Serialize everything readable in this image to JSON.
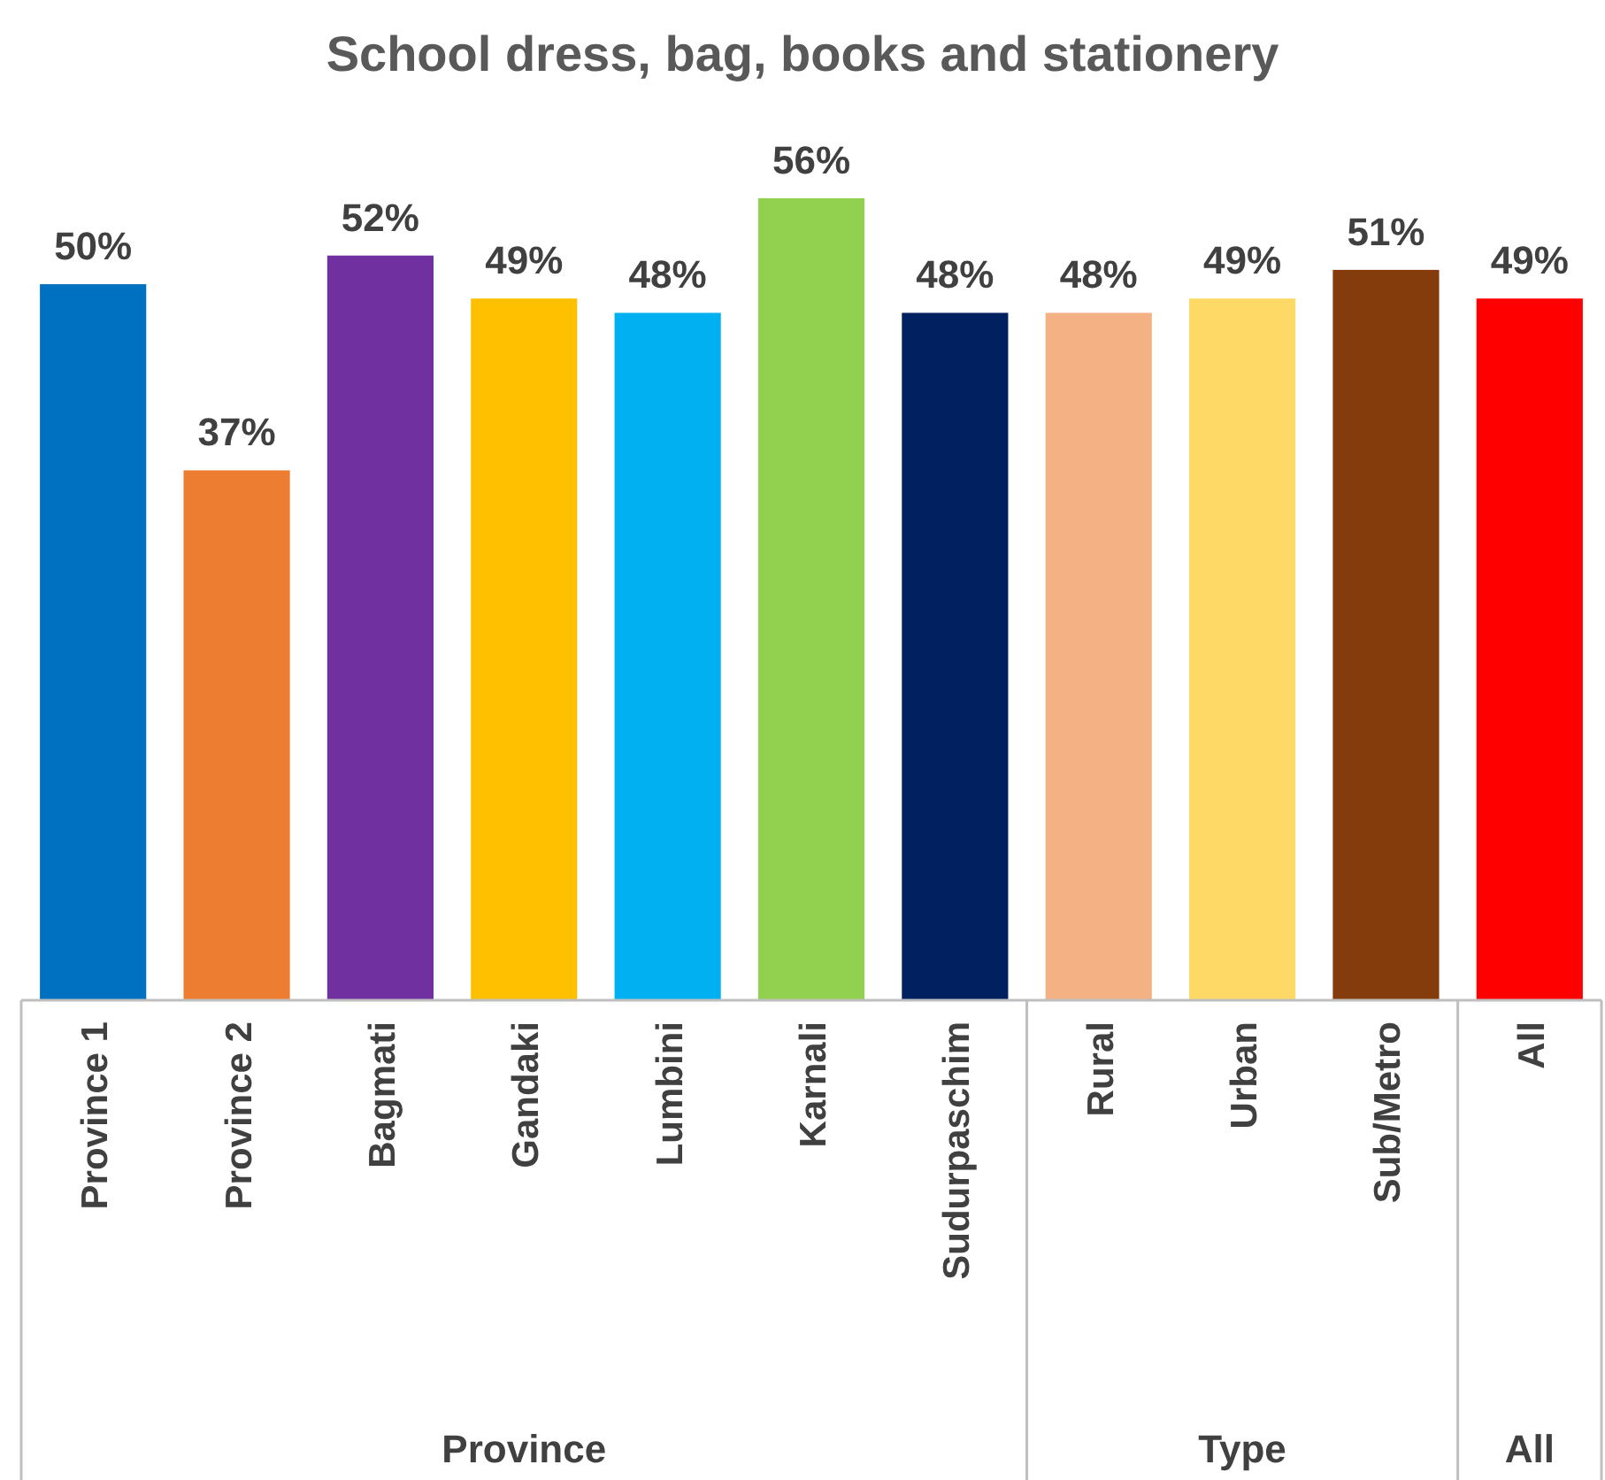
{
  "chart_data": {
    "type": "bar",
    "title": "School dress, bag, books and stationery",
    "categories": [
      "Province 1",
      "Province 2",
      "Bagmati",
      "Gandaki",
      "Lumbini",
      "Karnali",
      "Sudurpaschim",
      "Rural",
      "Urban",
      "Sub/Metro",
      "All"
    ],
    "values": [
      50,
      37,
      52,
      49,
      48,
      56,
      48,
      48,
      49,
      51,
      49
    ],
    "colors": [
      "#0070c0",
      "#ed7d31",
      "#7030a0",
      "#ffc000",
      "#00b0f0",
      "#92d050",
      "#002060",
      "#f4b183",
      "#ffd966",
      "#843c0c",
      "#ff0000"
    ],
    "value_labels": [
      "50%",
      "37%",
      "52%",
      "49%",
      "48%",
      "56%",
      "48%",
      "48%",
      "49%",
      "51%",
      "49%"
    ],
    "relative": false,
    "annotations": [
      "Province",
      "Type",
      "All"
    ]
  }
}
